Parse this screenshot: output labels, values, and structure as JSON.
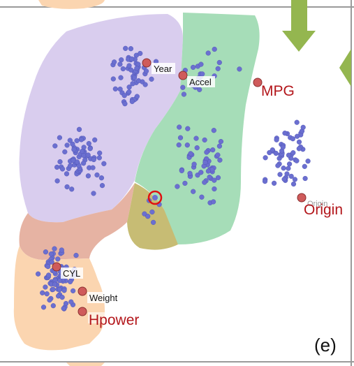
{
  "panel_label": "(e)",
  "colors": {
    "purple_region": "#d9cdee",
    "green_region": "#a6ddb8",
    "orange_region": "#fbd5b0",
    "red_region": "#e6b3a3",
    "olive_region": "#c7bc74",
    "point": "#6b6fd0",
    "attribute_marker": "#cf5b5b",
    "arrow": "#94b64f",
    "label_red": "#b3161b"
  },
  "attributes": [
    {
      "name": "Year",
      "label": "Year",
      "style": "small"
    },
    {
      "name": "Accel",
      "label": "Accel",
      "style": "small"
    },
    {
      "name": "MPG",
      "label": "MPG",
      "style": "big"
    },
    {
      "name": "Origin",
      "label": "Origin",
      "style": "big"
    },
    {
      "name": "CYL",
      "label": "CYL",
      "style": "small"
    },
    {
      "name": "Weight",
      "label": "Weight",
      "style": "small"
    },
    {
      "name": "Hpower",
      "label": "Hpower",
      "style": "big"
    }
  ],
  "ghost_labels": {
    "origin_shadow": "Origin"
  }
}
